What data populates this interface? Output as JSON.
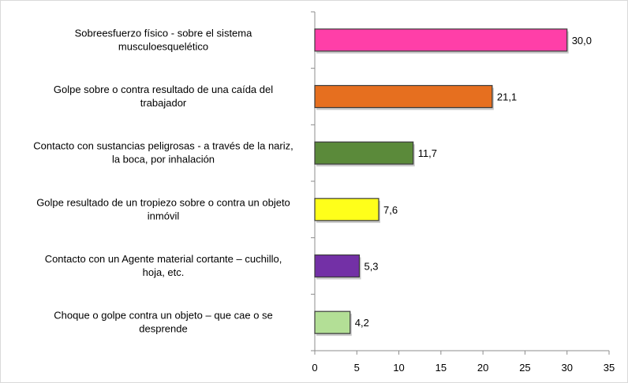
{
  "chart_data": {
    "type": "bar",
    "orientation": "horizontal",
    "categories": [
      [
        "Sobreesfuerzo físico - sobre el sistema",
        "musculoesquelético"
      ],
      [
        "Golpe sobre o contra resultado de una caída del",
        "trabajador"
      ],
      [
        "Contacto con sustancias peligrosas - a través de la nariz,",
        "la boca, por inhalación"
      ],
      [
        "Golpe resultado de un tropiezo sobre o contra un objeto",
        "inmóvil"
      ],
      [
        "Contacto con un Agente material cortante –  cuchillo,",
        "hoja, etc."
      ],
      [
        "Choque o golpe contra un objeto – que cae o se",
        "desprende"
      ]
    ],
    "values": [
      30.0,
      21.1,
      11.7,
      7.6,
      5.3,
      4.2
    ],
    "data_labels": [
      "30,0",
      "21,1",
      "11,7",
      "7,6",
      "5,3",
      "4,2"
    ],
    "colors": [
      "#ff3fa8",
      "#e66f1f",
      "#5b8a3a",
      "#ffff1a",
      "#7330a6",
      "#b3df96"
    ],
    "xlim": [
      0,
      35
    ],
    "xticks": [
      "0",
      "5",
      "10",
      "15",
      "20",
      "25",
      "30",
      "35"
    ],
    "grid": false,
    "legend": "none",
    "title": "",
    "xlabel": "",
    "ylabel": ""
  }
}
